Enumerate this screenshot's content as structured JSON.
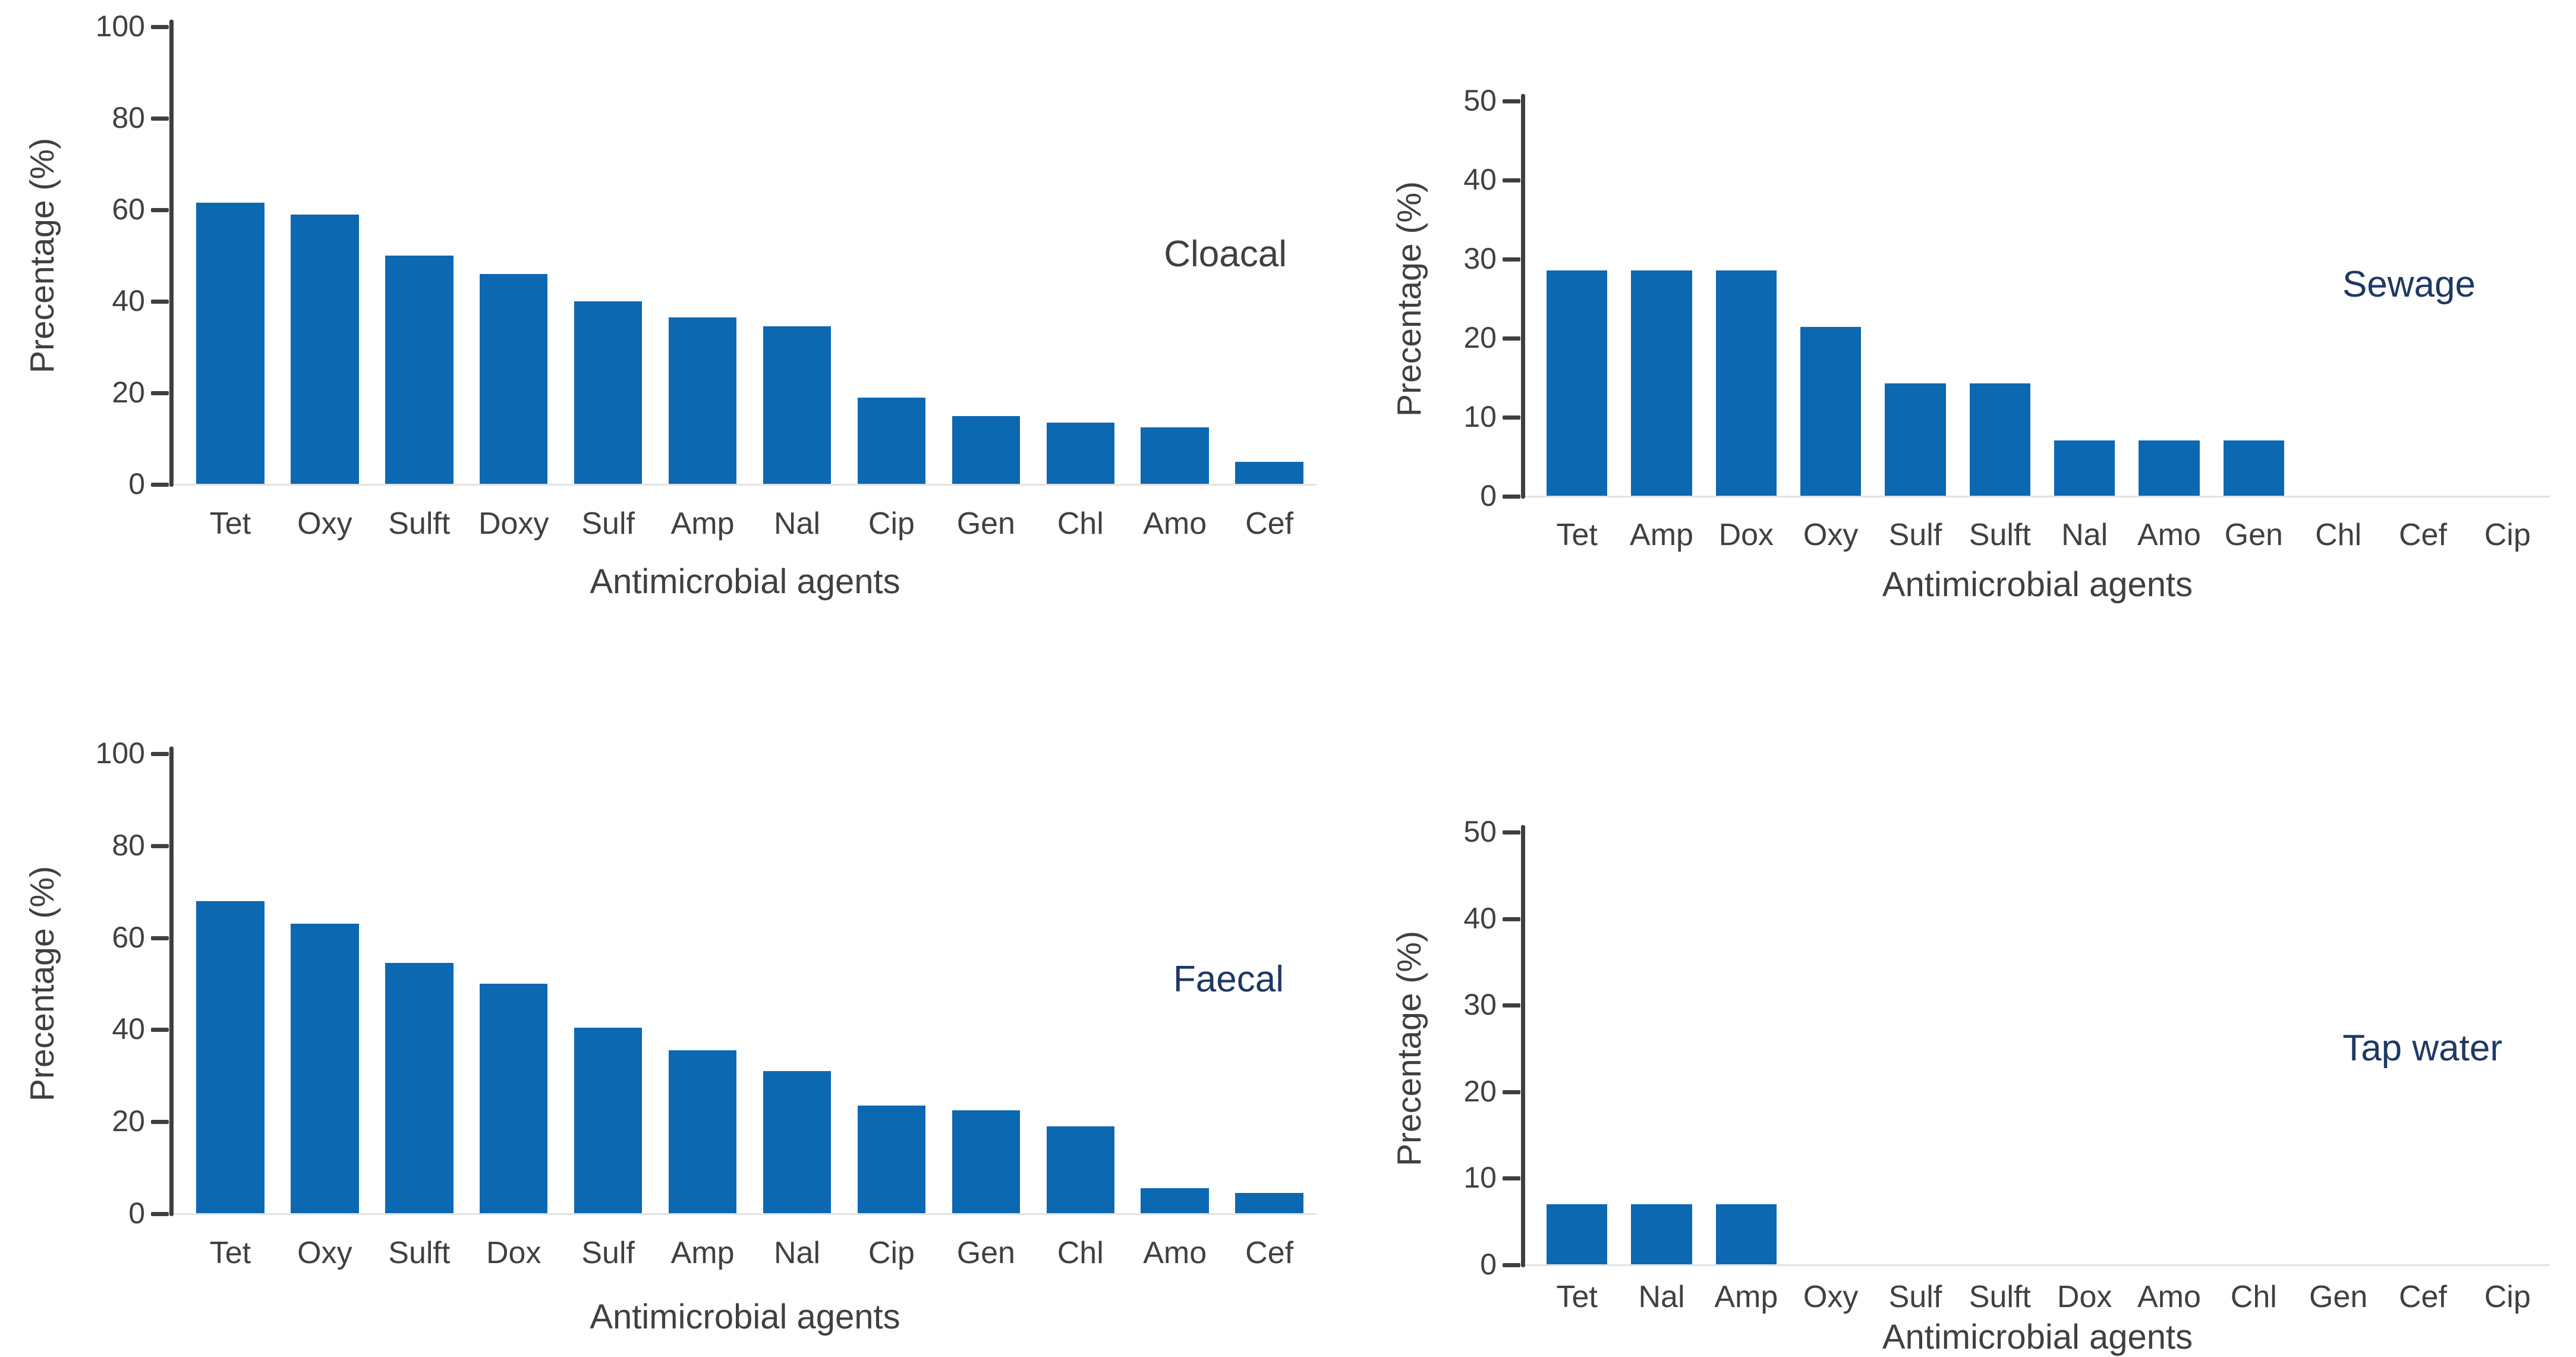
{
  "figure": {
    "background": "#ffffff",
    "text_color": "#404040",
    "axis_color": "#3f3f3f",
    "baseline_color": "#e2e2e2"
  },
  "chart_data": [
    {
      "type": "bar",
      "title": "Cloacal",
      "title_color": "#404040",
      "ylabel": "Precentage (%)",
      "xlabel": "Antimicrobial agents",
      "ylim": [
        0,
        100
      ],
      "yticks": [
        0,
        20,
        40,
        60,
        80,
        100
      ],
      "grid": false,
      "legend": "none",
      "bar_color": "#0d68b2",
      "categories": [
        "Tet",
        "Oxy",
        "Sulft",
        "Doxy",
        "Sulf",
        "Amp",
        "Nal",
        "Cip",
        "Gen",
        "Chl",
        "Amo",
        "Cef"
      ],
      "values": [
        61.5,
        59,
        50,
        46,
        40,
        36.5,
        34.5,
        19,
        15,
        13.5,
        12.5,
        5
      ]
    },
    {
      "type": "bar",
      "title": "Sewage",
      "title_color": "#1f3864",
      "ylabel": "Precentage (%)",
      "xlabel": "Antimicrobial agents",
      "ylim": [
        0,
        50
      ],
      "yticks": [
        0,
        10,
        20,
        30,
        40,
        50
      ],
      "grid": false,
      "legend": "none",
      "bar_color": "#0d68b2",
      "categories": [
        "Tet",
        "Amp",
        "Dox",
        "Oxy",
        "Sulf",
        "Sulft",
        "Nal",
        "Amo",
        "Gen",
        "Chl",
        "Cef",
        "Cip"
      ],
      "values": [
        28.6,
        28.6,
        28.6,
        21.4,
        14.3,
        14.3,
        7.1,
        7.1,
        7.1,
        0,
        0,
        0
      ]
    },
    {
      "type": "bar",
      "title": "Faecal",
      "title_color": "#1f3864",
      "ylabel": "Precentage (%)",
      "xlabel": "Antimicrobial agents",
      "ylim": [
        0,
        100
      ],
      "yticks": [
        0,
        20,
        40,
        60,
        80,
        100
      ],
      "grid": false,
      "legend": "none",
      "bar_color": "#0d68b2",
      "categories": [
        "Tet",
        "Oxy",
        "Sulft",
        "Dox",
        "Sulf",
        "Amp",
        "Nal",
        "Cip",
        "Gen",
        "Chl",
        "Amo",
        "Cef"
      ],
      "values": [
        68,
        63,
        54.5,
        50,
        40.5,
        35.5,
        31,
        23.5,
        22.5,
        19,
        5.5,
        4.5
      ]
    },
    {
      "type": "bar",
      "title": "Tap water",
      "title_color": "#1f3864",
      "ylabel": "Precentage (%)",
      "xlabel": "Antimicrobial agents",
      "ylim": [
        0,
        50
      ],
      "yticks": [
        0,
        10,
        20,
        30,
        40,
        50
      ],
      "grid": false,
      "legend": "none",
      "bar_color": "#0d68b2",
      "categories": [
        "Tet",
        "Nal",
        "Amp",
        "Oxy",
        "Sulf",
        "Sulft",
        "Dox",
        "Amo",
        "Chl",
        "Gen",
        "Cef",
        "Cip"
      ],
      "values": [
        7,
        7,
        7,
        0,
        0,
        0,
        0,
        0,
        0,
        0,
        0,
        0
      ]
    }
  ]
}
